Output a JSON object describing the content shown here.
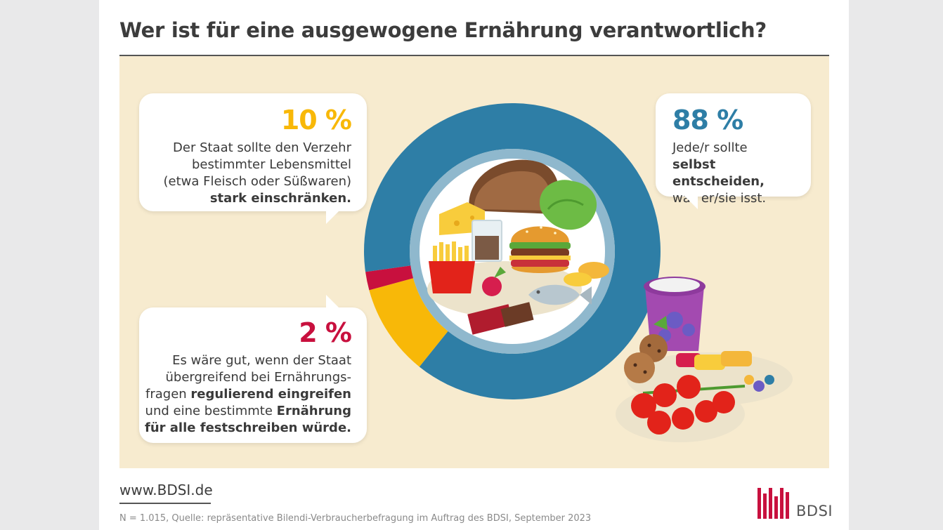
{
  "title": "Wer ist für eine ausgewogene Ernährung verantwortlich?",
  "colors": {
    "selbst": "#2e7ea6",
    "einschraenken": "#f8b808",
    "festschreiben": "#c8103e",
    "panel_bg": "#f7ebcf"
  },
  "chart_data": {
    "type": "pie",
    "categories": [
      "Jede/r sollte selbst entscheiden, was er/sie isst.",
      "Der Staat sollte den Verzehr bestimmter Lebensmittel (etwa Fleisch oder Süßwaren) stark einschränken.",
      "Es wäre gut, wenn der Staat übergreifend bei Ernährungsfragen regulierend eingreifen und eine bestimmte Ernährung für alle festschreiben würde."
    ],
    "values": [
      88,
      10,
      2
    ],
    "labels": [
      "88 %",
      "10 %",
      "2 %"
    ],
    "colors": [
      "#2e7ea6",
      "#f8b808",
      "#c8103e"
    ]
  },
  "bubbles": {
    "ten": {
      "pct": "10 %",
      "line1": "Der Staat sollte den Verzehr",
      "line2": "bestimmter Lebensmittel",
      "line3": "(etwa Fleisch oder Süßwaren)",
      "line4": "stark einschränken."
    },
    "eightyeight": {
      "pct": "88 %",
      "line1": "Jede/r sollte",
      "line2": "selbst entscheiden,",
      "line3": "was er/sie isst."
    },
    "two": {
      "pct": "2 %",
      "line1": "Es wäre gut, wenn der Staat",
      "line2": "übergreifend bei Ernährungs-",
      "line3a": "fragen ",
      "line3b": "regulierend eingreifen",
      "line4a": "und eine bestimmte ",
      "line4b": "Ernährung",
      "line5": "für alle festschreiben würde."
    }
  },
  "footer": {
    "url": "www.BDSI.de",
    "source": "N = 1.015, Quelle: repräsentative Bilendi-Verbraucherbefragung im Auftrag des BDSI, September 2023",
    "logo_text": "BDSI"
  }
}
